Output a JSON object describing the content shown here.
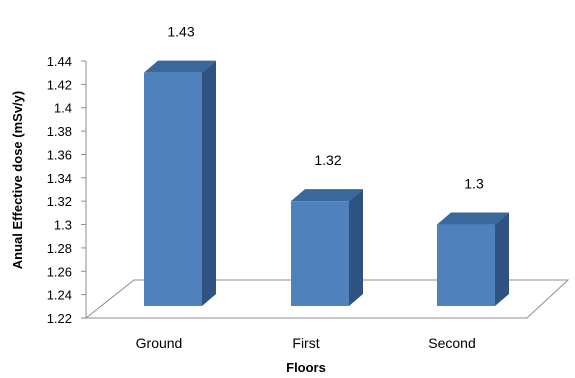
{
  "chart_data": {
    "type": "bar",
    "categories": [
      "Ground",
      "First",
      "Second"
    ],
    "values": [
      1.43,
      1.32,
      1.3
    ],
    "data_labels": [
      "1.43",
      "1.32",
      "1.3"
    ],
    "xlabel": "Floors",
    "ylabel": "Anual Effective dose (mSv/y)",
    "ylim": [
      1.22,
      1.44
    ],
    "yticks": [
      "1.22",
      "1.24",
      "1.26",
      "1.28",
      "1.3",
      "1.32",
      "1.34",
      "1.36",
      "1.38",
      "1.4",
      "1.42",
      "1.44"
    ],
    "style": "3d-column",
    "grid": false,
    "legend": "none",
    "colors": {
      "bar_front": "#4f81bd",
      "bar_side": "#2e5282",
      "bar_top": "#3a679c",
      "floor_line": "#8c8c8c"
    }
  }
}
